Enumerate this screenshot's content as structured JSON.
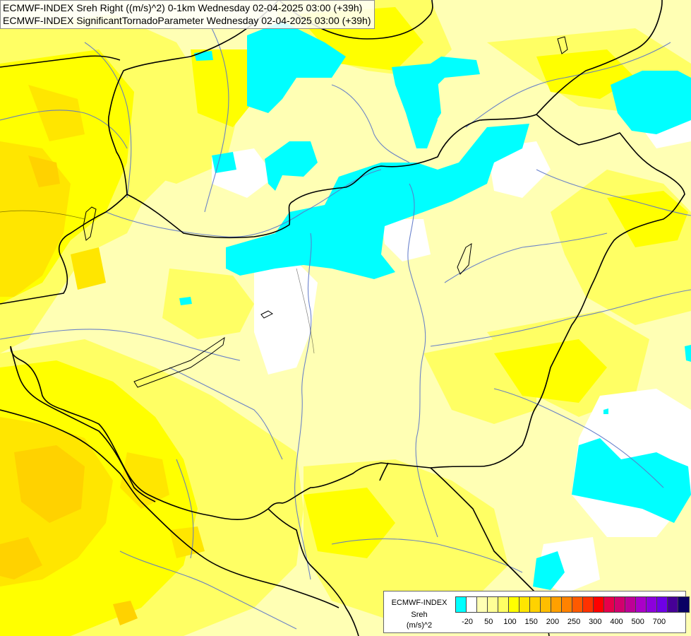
{
  "header": {
    "line1": "ECMWF-INDEX Sreh Right ((m/s)^2) 0-1km Wednesday 02-04-2025 03:00 (+39h)",
    "line2": "ECMWF-INDEX SignificantTornadoParameter Wednesday 02-04-2025 03:00 (+39h)"
  },
  "legend": {
    "model": "ECMWF-INDEX",
    "variable": "Sreh",
    "unit": "(m/s)^2",
    "colors": [
      "#00ffff",
      "#ffffff",
      "#ffffb4",
      "#ffff96",
      "#ffff64",
      "#ffff00",
      "#ffe600",
      "#ffd200",
      "#ffbe00",
      "#ffa000",
      "#ff8200",
      "#ff5a00",
      "#ff3200",
      "#ff0000",
      "#e6004b",
      "#d2006e",
      "#be0096",
      "#aa00c8",
      "#8c00dc",
      "#6e00e6",
      "#460096",
      "#0a0064"
    ],
    "ticks": [
      "-20",
      "50",
      "100",
      "150",
      "200",
      "250",
      "300",
      "400",
      "500",
      "700"
    ]
  },
  "colors": {
    "background": "#ffffb4",
    "cyan": "#00ffff",
    "white": "#ffffff",
    "light_yellow": "#ffffb4",
    "yellow_2": "#ffff64",
    "yellow": "#ffff00",
    "gold": "#ffe600",
    "orange": "#ffd200",
    "border": "#000000",
    "river": "#5c76c8"
  }
}
